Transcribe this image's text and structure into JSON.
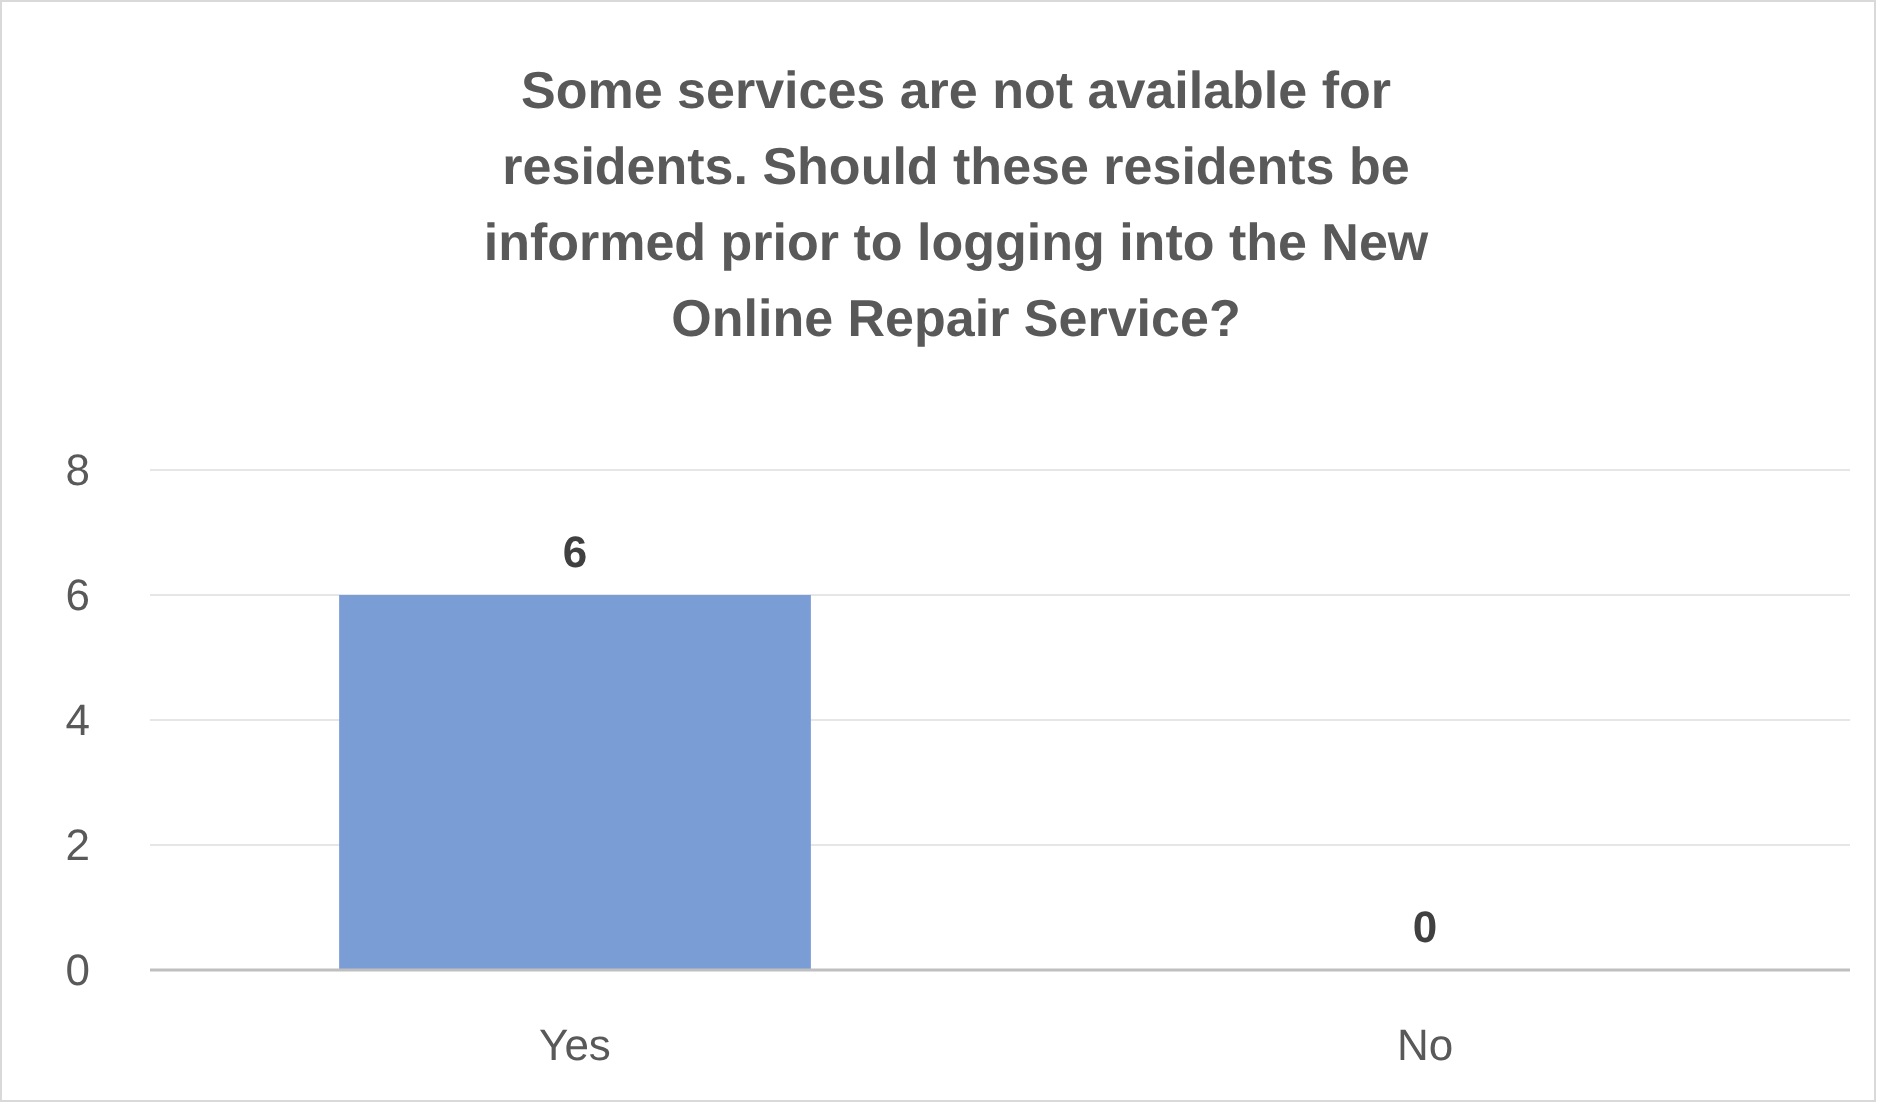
{
  "chart_data": {
    "type": "bar",
    "title": "Some services are not available for residents. Should these residents be informed prior to logging into the New Online Repair Service?",
    "categories": [
      "Yes",
      "No"
    ],
    "values": [
      6,
      0
    ],
    "color": "#7a9dd6",
    "ylim": [
      0,
      8
    ],
    "yticks": [
      0,
      2,
      4,
      6,
      8
    ],
    "grid": "y",
    "data_labels": true
  }
}
